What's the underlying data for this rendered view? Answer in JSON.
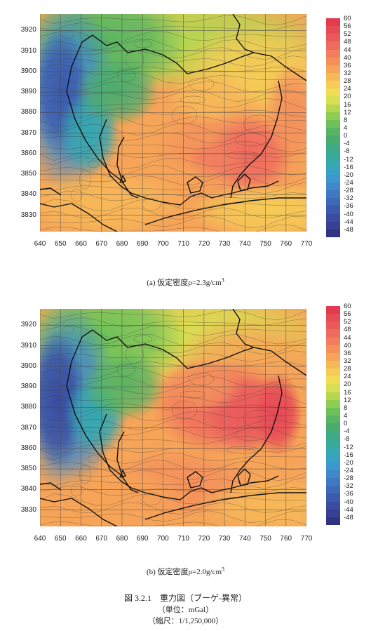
{
  "panels": [
    {
      "caption_label": "(a)",
      "caption_text": "仮定密度ρ=2.3g/cm",
      "caption_sup": "3",
      "variant": "a"
    },
    {
      "caption_label": "(b)",
      "caption_text": "仮定密度ρ=2.0g/cm",
      "caption_sup": "3",
      "variant": "b"
    }
  ],
  "axes": {
    "x_ticks": [
      "640",
      "650",
      "660",
      "670",
      "680",
      "690",
      "700",
      "710",
      "720",
      "730",
      "740",
      "750",
      "760",
      "770"
    ],
    "y_ticks": [
      "3920",
      "3910",
      "3900",
      "3890",
      "3880",
      "3870",
      "3860",
      "3850",
      "3840",
      "3830"
    ],
    "x_range": [
      640,
      770
    ],
    "y_range": [
      3822,
      3928
    ]
  },
  "colorbar": {
    "labels": [
      "60",
      "56",
      "52",
      "48",
      "44",
      "40",
      "36",
      "32",
      "28",
      "24",
      "20",
      "16",
      "12",
      "8",
      "4",
      "0",
      "-4",
      "-8",
      "-12",
      "-16",
      "-20",
      "-24",
      "-28",
      "-32",
      "-36",
      "-40",
      "-44",
      "-48"
    ],
    "colors": [
      "#e23a4e",
      "#e64a55",
      "#ea5a5b",
      "#ee6b5f",
      "#f27d5f",
      "#f4905c",
      "#f6a458",
      "#f7b858",
      "#f6cb57",
      "#f0dc55",
      "#d8df52",
      "#b5d750",
      "#8fcc52",
      "#6ec15a",
      "#58b563",
      "#4aad6e",
      "#3fab84",
      "#38aa9a",
      "#35a8b0",
      "#38a2c4",
      "#3c97cf",
      "#3e88cb",
      "#3f79c3",
      "#3e69b9",
      "#3c5aad",
      "#3a4ca1",
      "#374092",
      "#2f3580"
    ]
  },
  "figure": {
    "title": "図 3.2.1　重力図（ブーゲ-異常）",
    "unit": "（単位：mGal）",
    "scale": "（縮尺：1/1,250,000）"
  }
}
